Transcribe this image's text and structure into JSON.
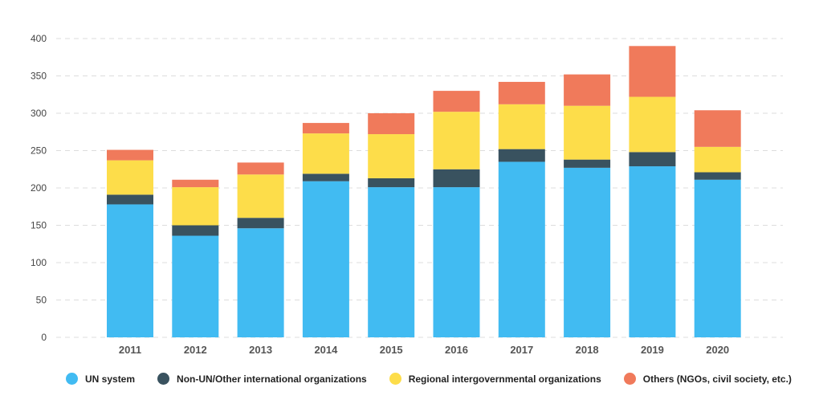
{
  "chart_data": {
    "type": "bar",
    "stacked": true,
    "categories": [
      "2011",
      "2012",
      "2013",
      "2014",
      "2015",
      "2016",
      "2017",
      "2018",
      "2019",
      "2020"
    ],
    "series": [
      {
        "name": "UN system",
        "color": "#41BBF2",
        "values": [
          178,
          136,
          146,
          209,
          201,
          201,
          235,
          227,
          229,
          211
        ]
      },
      {
        "name": "Non-UN/Other international organizations",
        "color": "#39525F",
        "values": [
          13,
          14,
          14,
          10,
          12,
          24,
          17,
          11,
          19,
          10
        ]
      },
      {
        "name": "Regional intergovernmental organizations",
        "color": "#FDDD4A",
        "values": [
          46,
          51,
          58,
          54,
          59,
          77,
          60,
          72,
          74,
          34
        ]
      },
      {
        "name": "Others (NGOs, civil society, etc.)",
        "color": "#F07A5B",
        "values": [
          14,
          10,
          16,
          14,
          28,
          28,
          30,
          42,
          68,
          49
        ]
      }
    ],
    "ylim": [
      0,
      400
    ],
    "yticks": [
      "0",
      "50",
      "100",
      "150",
      "200",
      "250",
      "300",
      "350",
      "400"
    ],
    "grid": true,
    "legend_position": "bottom"
  }
}
